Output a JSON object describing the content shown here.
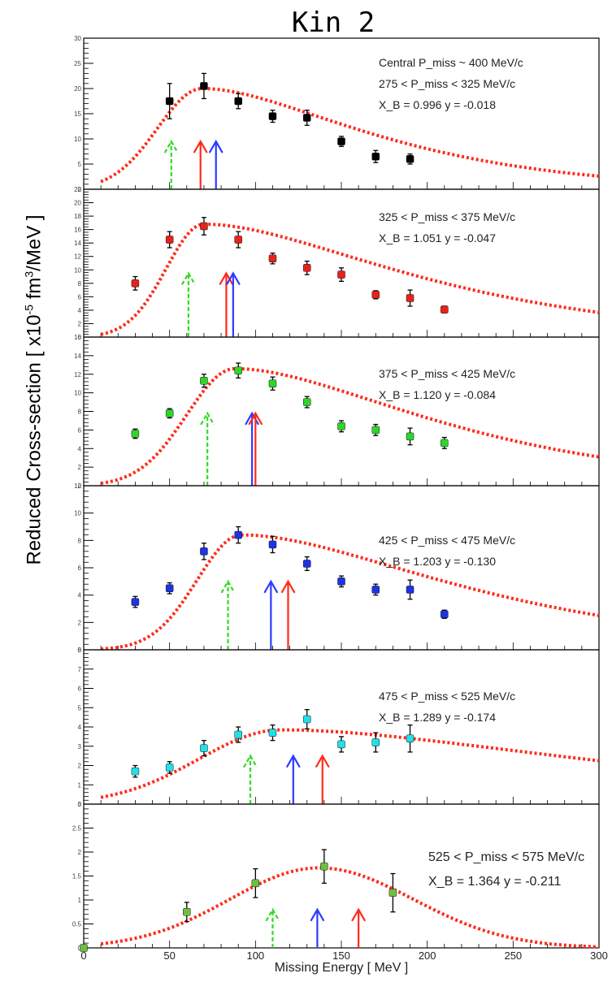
{
  "title": "Kin 2",
  "ylabel": {
    "prefix": "Reduced Cross-section [ x10",
    "exp": "-5",
    "unit": " fm",
    "unit_exp": "3",
    "suffix": "/MeV ]"
  },
  "xlabel": "Missing Energy [ MeV ]",
  "colors": {
    "fit": "#ff2a1a",
    "arrow_green": "#2edc20",
    "arrow_red": "#ff2a1a",
    "arrow_blue": "#2d3bff",
    "error": "#000000",
    "frame": "#000000"
  },
  "chart_data": {
    "type": "scatter",
    "xlim": [
      0,
      300
    ],
    "x_ticks": [
      0,
      50,
      100,
      150,
      200,
      250,
      300
    ],
    "panels": [
      {
        "ylim": [
          0,
          30
        ],
        "yticks": [
          0,
          5,
          10,
          15,
          20,
          25,
          30
        ],
        "marker_color": "#000000",
        "lines": [
          "Central P_miss ~ 400 MeV/c",
          "275 < P_miss < 325 MeV/c",
          "X_B = 0.996   y = -0.018"
        ],
        "points": [
          {
            "x": 50,
            "y": 17.5,
            "err": 3.5
          },
          {
            "x": 70,
            "y": 20.5,
            "err": 2.5
          },
          {
            "x": 90,
            "y": 17.5,
            "err": 1.5
          },
          {
            "x": 110,
            "y": 14.5,
            "err": 1.2
          },
          {
            "x": 130,
            "y": 14.2,
            "err": 1.5
          },
          {
            "x": 150,
            "y": 9.5,
            "err": 1.0
          },
          {
            "x": 170,
            "y": 6.5,
            "err": 1.2
          },
          {
            "x": 190,
            "y": 6.0,
            "err": 1.0
          }
        ],
        "fit": {
          "mu": 69,
          "sigma_l": 26,
          "amp": 20.0,
          "tau": 65,
          "base": 0
        },
        "arrows": [
          {
            "x": 51,
            "color": "green",
            "top": 9.5
          },
          {
            "x": 68,
            "color": "red",
            "top": 9.5
          },
          {
            "x": 77,
            "color": "blue",
            "top": 9.5
          }
        ]
      },
      {
        "ylim": [
          0,
          22
        ],
        "yticks": [
          0,
          2,
          4,
          6,
          8,
          10,
          12,
          14,
          16,
          18,
          20,
          22
        ],
        "marker_color": "#e8221a",
        "lines": [
          "325 < P_miss < 375 MeV/c",
          "X_B = 1.051   y = -0.047"
        ],
        "points": [
          {
            "x": 30,
            "y": 8.0,
            "err": 1.0
          },
          {
            "x": 50,
            "y": 14.5,
            "err": 1.2
          },
          {
            "x": 70,
            "y": 16.5,
            "err": 1.3
          },
          {
            "x": 90,
            "y": 14.5,
            "err": 1.2
          },
          {
            "x": 110,
            "y": 11.7,
            "err": 0.8
          },
          {
            "x": 130,
            "y": 10.3,
            "err": 1.0
          },
          {
            "x": 150,
            "y": 9.3,
            "err": 1.0
          },
          {
            "x": 170,
            "y": 6.3,
            "err": 0.6
          },
          {
            "x": 190,
            "y": 5.8,
            "err": 1.2
          },
          {
            "x": 210,
            "y": 4.1,
            "err": 0.5
          }
        ],
        "fit": {
          "mu": 70,
          "sigma_l": 22,
          "amp": 16.8,
          "tau": 80,
          "base": 0
        },
        "arrows": [
          {
            "x": 61,
            "color": "green",
            "top": 9.5
          },
          {
            "x": 83,
            "color": "red",
            "top": 9.5
          },
          {
            "x": 87,
            "color": "blue",
            "top": 9.5
          }
        ]
      },
      {
        "ylim": [
          0,
          16
        ],
        "yticks": [
          0,
          2,
          4,
          6,
          8,
          10,
          12,
          14,
          16
        ],
        "marker_color": "#2fd62a",
        "lines": [
          "375 < P_miss < 425 MeV/c",
          "X_B = 1.120   y = -0.084"
        ],
        "points": [
          {
            "x": 30,
            "y": 5.6,
            "err": 0.5
          },
          {
            "x": 50,
            "y": 7.8,
            "err": 0.5
          },
          {
            "x": 70,
            "y": 11.3,
            "err": 0.7
          },
          {
            "x": 90,
            "y": 12.4,
            "err": 0.8
          },
          {
            "x": 110,
            "y": 11.0,
            "err": 0.7
          },
          {
            "x": 130,
            "y": 9.0,
            "err": 0.6
          },
          {
            "x": 150,
            "y": 6.4,
            "err": 0.6
          },
          {
            "x": 170,
            "y": 6.0,
            "err": 0.6
          },
          {
            "x": 190,
            "y": 5.3,
            "err": 0.9
          },
          {
            "x": 210,
            "y": 4.6,
            "err": 0.6
          }
        ],
        "fit": {
          "mu": 88,
          "sigma_l": 28,
          "amp": 12.6,
          "tau": 78,
          "base": 0
        },
        "arrows": [
          {
            "x": 72,
            "color": "green",
            "top": 7.8
          },
          {
            "x": 98,
            "color": "blue",
            "top": 7.8
          },
          {
            "x": 100,
            "color": "red",
            "top": 7.8
          }
        ]
      },
      {
        "ylim": [
          0,
          12
        ],
        "yticks": [
          0,
          2,
          4,
          6,
          8,
          10,
          12
        ],
        "marker_color": "#1f32e6",
        "lines": [
          "425 < P_miss < 475 MeV/c",
          "X_B = 1.203   y = -0.130"
        ],
        "points": [
          {
            "x": 30,
            "y": 3.5,
            "err": 0.4
          },
          {
            "x": 50,
            "y": 4.5,
            "err": 0.4
          },
          {
            "x": 70,
            "y": 7.2,
            "err": 0.6
          },
          {
            "x": 90,
            "y": 8.4,
            "err": 0.6
          },
          {
            "x": 110,
            "y": 7.7,
            "err": 0.6
          },
          {
            "x": 130,
            "y": 6.3,
            "err": 0.5
          },
          {
            "x": 150,
            "y": 5.0,
            "err": 0.4
          },
          {
            "x": 170,
            "y": 4.4,
            "err": 0.4
          },
          {
            "x": 190,
            "y": 4.4,
            "err": 0.7
          },
          {
            "x": 210,
            "y": 2.6,
            "err": 0.3
          }
        ],
        "fit": {
          "mu": 92,
          "sigma_l": 26,
          "amp": 8.4,
          "tau": 85,
          "base": 0
        },
        "arrows": [
          {
            "x": 84,
            "color": "green",
            "top": 5.0
          },
          {
            "x": 109,
            "color": "blue",
            "top": 5.0
          },
          {
            "x": 119,
            "color": "red",
            "top": 5.0
          }
        ]
      },
      {
        "ylim": [
          0,
          8
        ],
        "yticks": [
          0,
          1,
          2,
          3,
          4,
          5,
          6,
          7,
          8
        ],
        "marker_color": "#22e0e8",
        "lines": [
          "475 < P_miss < 525 MeV/c",
          "X_B = 1.289   y = -0.174"
        ],
        "points": [
          {
            "x": 30,
            "y": 1.7,
            "err": 0.3
          },
          {
            "x": 50,
            "y": 1.9,
            "err": 0.3
          },
          {
            "x": 70,
            "y": 2.9,
            "err": 0.4
          },
          {
            "x": 90,
            "y": 3.6,
            "err": 0.4
          },
          {
            "x": 110,
            "y": 3.7,
            "err": 0.4
          },
          {
            "x": 130,
            "y": 4.4,
            "err": 0.5
          },
          {
            "x": 150,
            "y": 3.1,
            "err": 0.4
          },
          {
            "x": 170,
            "y": 3.2,
            "err": 0.5
          },
          {
            "x": 190,
            "y": 3.4,
            "err": 0.7
          }
        ],
        "fit": {
          "mu": 115,
          "sigma_l": 48,
          "amp": 3.85,
          "tau": 130,
          "base": 0
        },
        "arrows": [
          {
            "x": 97,
            "color": "green",
            "top": 2.5
          },
          {
            "x": 122,
            "color": "blue",
            "top": 2.5
          },
          {
            "x": 139,
            "color": "red",
            "top": 2.5
          }
        ]
      },
      {
        "ylim": [
          0,
          3
        ],
        "yticks": [
          0,
          0.5,
          1,
          1.5,
          2,
          2.5,
          3
        ],
        "ytick_labels": [
          "0",
          "0.5",
          "1",
          "1.5",
          "2",
          "2.5",
          "3"
        ],
        "marker_color": "#6fbf3f",
        "lines": [
          "525 < P_miss < 575 MeV/c",
          "X_B = 1.364   y = -0.211"
        ],
        "points": [
          {
            "x": 0,
            "y": 0.0,
            "err": 0.0
          },
          {
            "x": 60,
            "y": 0.75,
            "err": 0.2
          },
          {
            "x": 100,
            "y": 1.35,
            "err": 0.3
          },
          {
            "x": 140,
            "y": 1.7,
            "err": 0.35
          },
          {
            "x": 180,
            "y": 1.15,
            "err": 0.4
          }
        ],
        "fit": {
          "mu": 137,
          "sigma_l": 52,
          "amp": 1.67,
          "tau": 0,
          "sigma_r": 55,
          "base": 0
        },
        "arrows": [
          {
            "x": 110,
            "color": "green",
            "top": 0.8
          },
          {
            "x": 136,
            "color": "blue",
            "top": 0.8
          },
          {
            "x": 160,
            "color": "red",
            "top": 0.8
          }
        ]
      }
    ]
  }
}
